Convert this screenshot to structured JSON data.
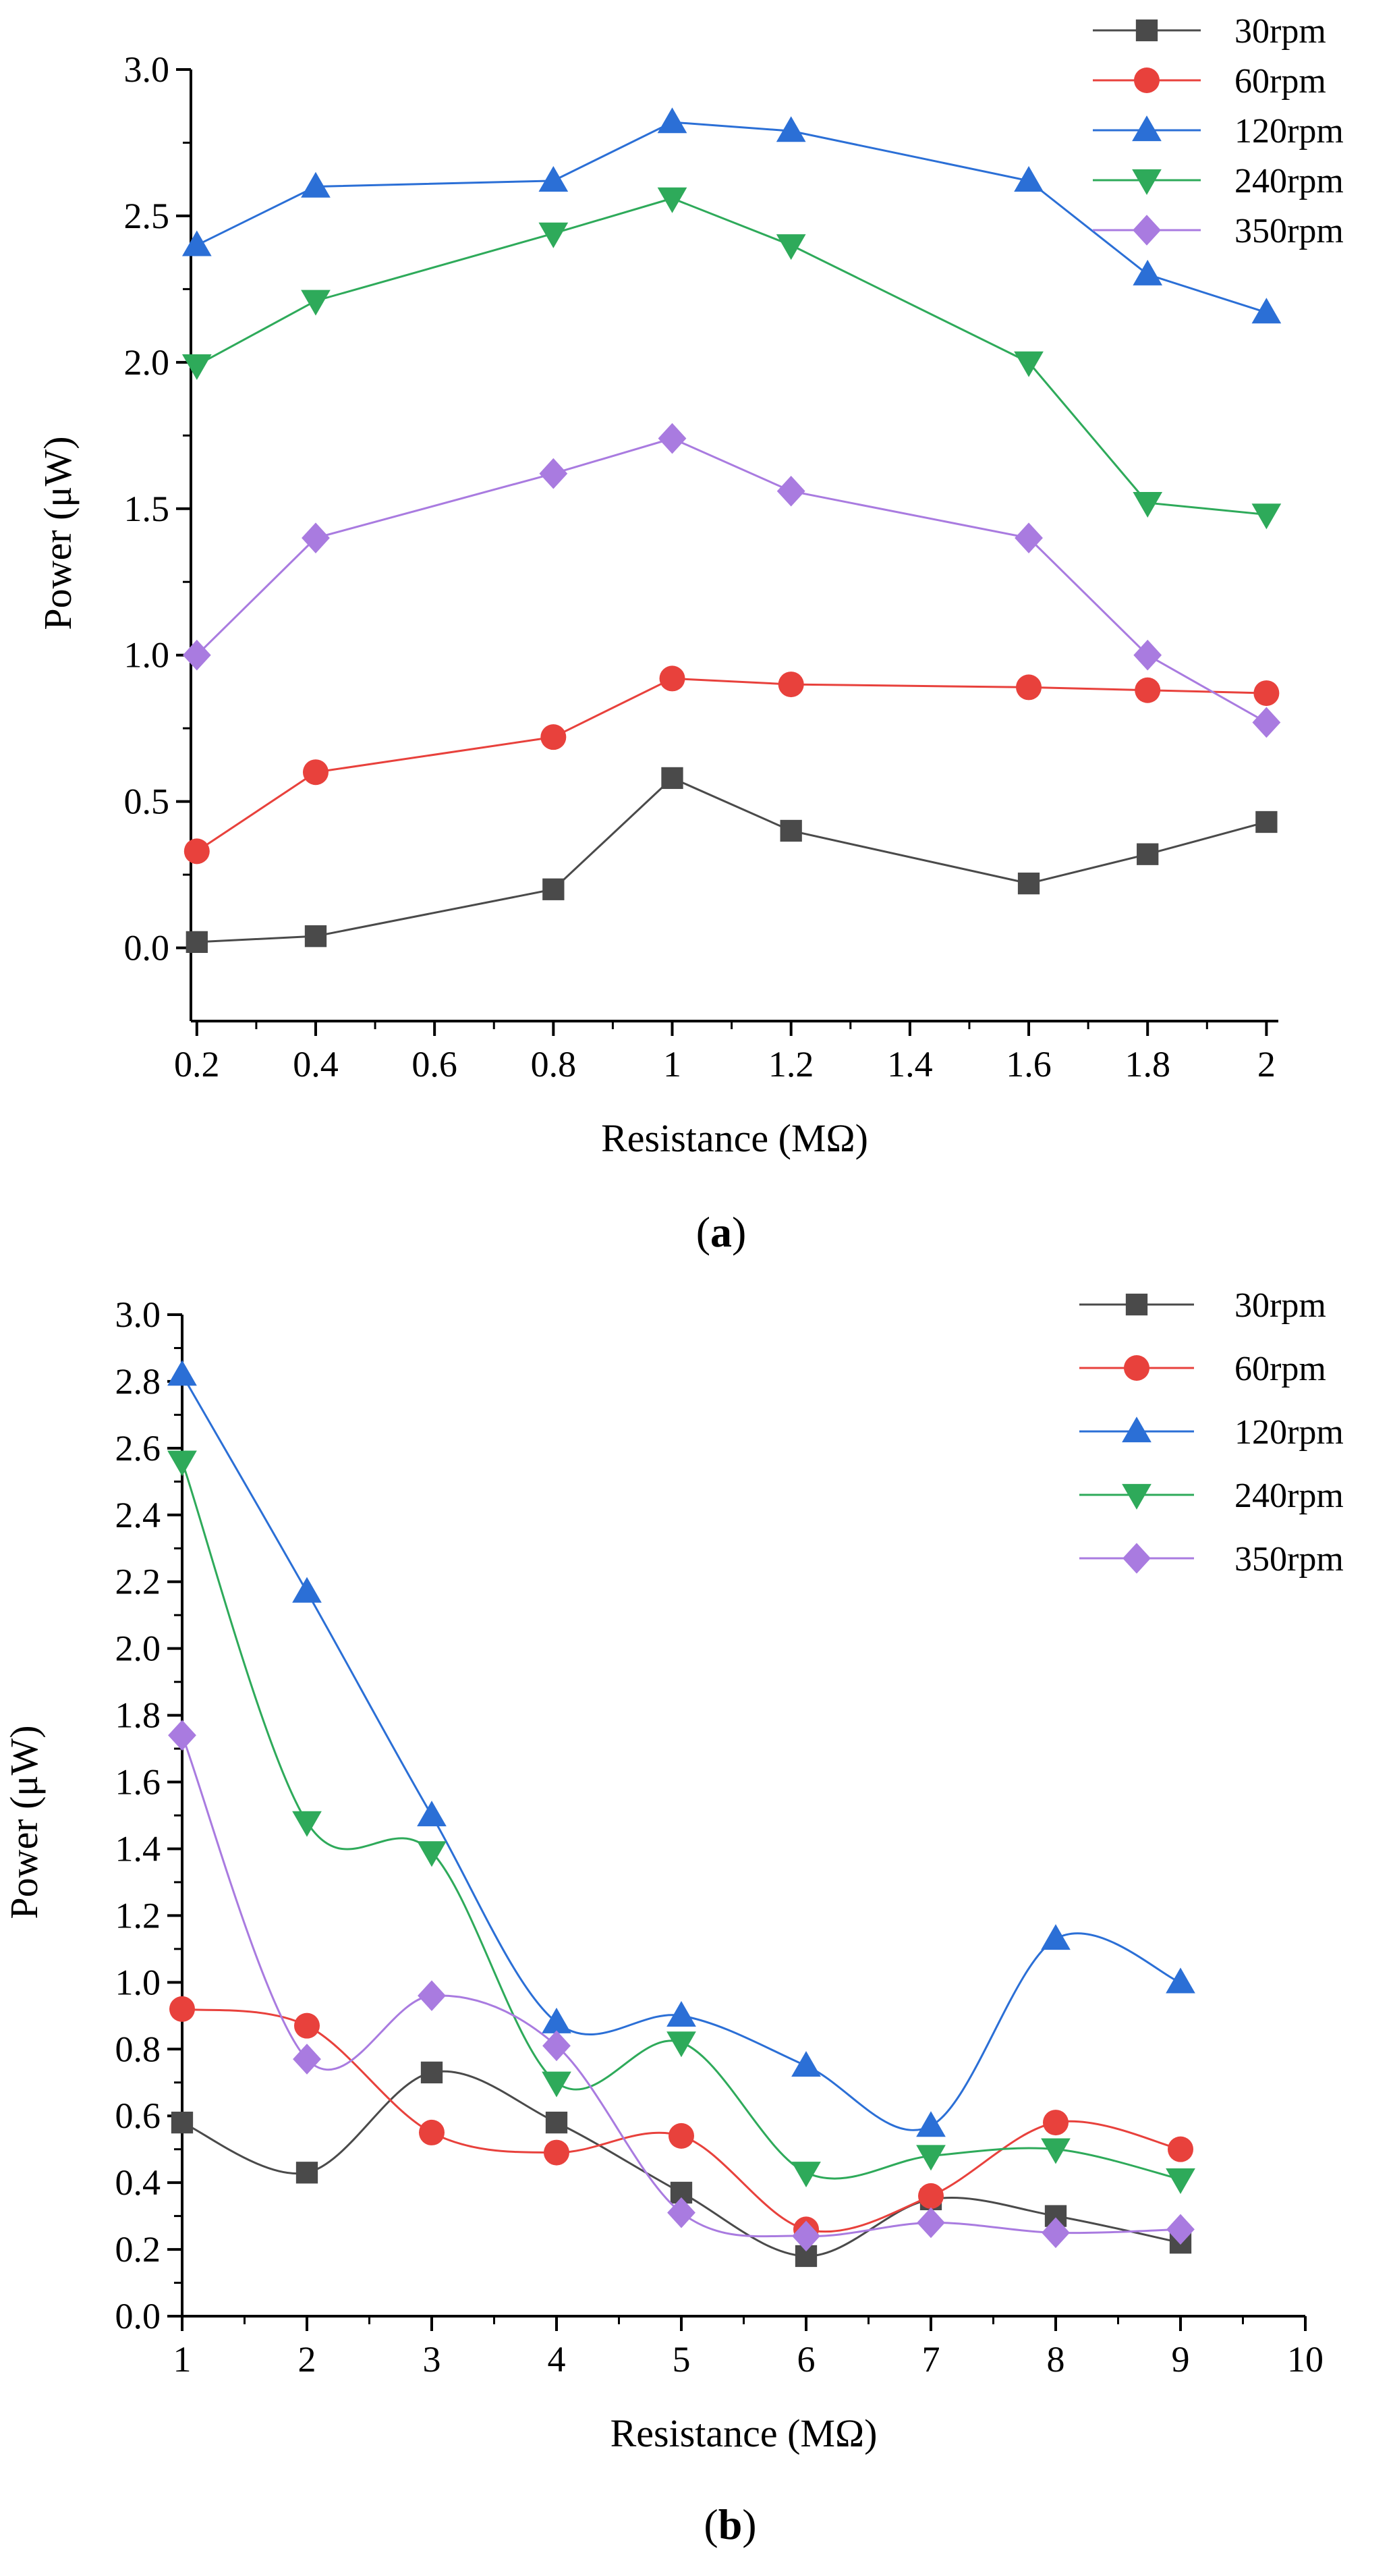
{
  "charts": [
    {
      "caption_letter": "a",
      "type": "line",
      "xlabel": "Resistance (MΩ)",
      "ylabel": "Power (μW)",
      "xlim": [
        0.19,
        2.02
      ],
      "ylim": [
        -0.25,
        3.0
      ],
      "xticks": [
        0.2,
        0.4,
        0.6,
        0.8,
        1.0,
        1.2,
        1.4,
        1.6,
        1.8,
        2.0
      ],
      "xtick_labels": [
        "0.2",
        "0.4",
        "0.6",
        "0.8",
        "1",
        "1.2",
        "1.4",
        "1.6",
        "1.8",
        "2"
      ],
      "yticks": [
        0.0,
        0.5,
        1.0,
        1.5,
        2.0,
        2.5,
        3.0
      ],
      "ytick_labels": [
        "0.0",
        "0.5",
        "1.0",
        "1.5",
        "2.0",
        "2.5",
        "3.0"
      ],
      "smooth": false,
      "legend_position": "top-right",
      "x": [
        0.2,
        0.4,
        0.8,
        1.0,
        1.2,
        1.6,
        1.8,
        2.0
      ],
      "series": [
        {
          "name": "30rpm",
          "marker": "square",
          "color": "#4a4a4a",
          "values": [
            0.02,
            0.04,
            0.2,
            0.58,
            0.4,
            0.22,
            0.32,
            0.43
          ]
        },
        {
          "name": "60rpm",
          "marker": "circle",
          "color": "#e8413c",
          "values": [
            0.33,
            0.6,
            0.72,
            0.92,
            0.9,
            0.89,
            0.88,
            0.87
          ]
        },
        {
          "name": "120rpm",
          "marker": "triangle-up",
          "color": "#2b6fd6",
          "values": [
            2.4,
            2.6,
            2.62,
            2.82,
            2.79,
            2.62,
            2.3,
            2.17
          ]
        },
        {
          "name": "240rpm",
          "marker": "triangle-down",
          "color": "#2eaa5a",
          "values": [
            1.99,
            2.21,
            2.44,
            2.56,
            2.4,
            2.0,
            1.52,
            1.48
          ]
        },
        {
          "name": "350rpm",
          "marker": "diamond",
          "color": "#a97be0",
          "values": [
            1.0,
            1.4,
            1.62,
            1.74,
            1.56,
            1.4,
            1.0,
            0.77
          ]
        }
      ]
    },
    {
      "caption_letter": "b",
      "type": "line",
      "xlabel": "Resistance (MΩ)",
      "ylabel": "Power (μW)",
      "xlim": [
        1,
        10
      ],
      "ylim": [
        0.0,
        3.0
      ],
      "xticks": [
        1,
        2,
        3,
        4,
        5,
        6,
        7,
        8,
        9,
        10
      ],
      "xtick_labels": [
        "1",
        "2",
        "3",
        "4",
        "5",
        "6",
        "7",
        "8",
        "9",
        "10"
      ],
      "yticks": [
        0.0,
        0.2,
        0.4,
        0.6,
        0.8,
        1.0,
        1.2,
        1.4,
        1.6,
        1.8,
        2.0,
        2.2,
        2.4,
        2.6,
        2.8,
        3.0
      ],
      "ytick_labels": [
        "0.0",
        "0.2",
        "0.4",
        "0.6",
        "0.8",
        "1.0",
        "1.2",
        "1.4",
        "1.6",
        "1.8",
        "2.0",
        "2.2",
        "2.4",
        "2.6",
        "2.8",
        "3.0"
      ],
      "smooth": true,
      "legend_position": "top-right",
      "x": [
        1,
        2,
        3,
        4,
        5,
        6,
        7,
        8,
        9
      ],
      "series": [
        {
          "name": "30rpm",
          "marker": "square",
          "color": "#4a4a4a",
          "values": [
            0.58,
            0.43,
            0.73,
            0.58,
            0.37,
            0.18,
            0.35,
            0.3,
            0.22
          ]
        },
        {
          "name": "60rpm",
          "marker": "circle",
          "color": "#e8413c",
          "values": [
            0.92,
            0.87,
            0.55,
            0.49,
            0.54,
            0.26,
            0.36,
            0.58,
            0.5
          ]
        },
        {
          "name": "120rpm",
          "marker": "triangle-up",
          "color": "#2b6fd6",
          "values": [
            2.82,
            2.17,
            1.5,
            0.88,
            0.9,
            0.75,
            0.57,
            1.13,
            1.0
          ]
        },
        {
          "name": "240rpm",
          "marker": "triangle-down",
          "color": "#2eaa5a",
          "values": [
            2.56,
            1.48,
            1.39,
            0.7,
            0.82,
            0.43,
            0.48,
            0.5,
            0.41
          ]
        },
        {
          "name": "350rpm",
          "marker": "diamond",
          "color": "#a97be0",
          "values": [
            1.74,
            0.77,
            0.96,
            0.81,
            0.31,
            0.24,
            0.28,
            0.25,
            0.26
          ]
        }
      ]
    }
  ]
}
